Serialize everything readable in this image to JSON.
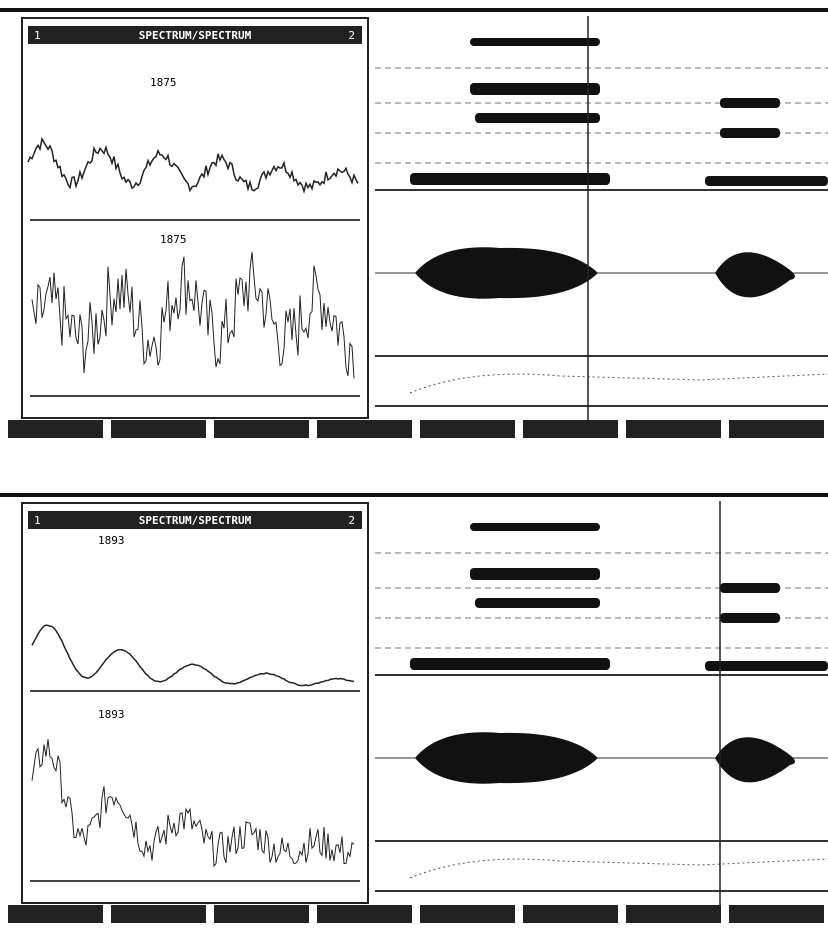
{
  "panels": [
    {
      "title": "SPECTRUM/SPECTRUM",
      "window_left": "1",
      "window_right": "2",
      "upper_label": "1875",
      "lower_label": "1875"
    },
    {
      "title": "SPECTRUM/SPECTRUM",
      "window_left": "1",
      "window_right": "2",
      "upper_label": "1893",
      "lower_label": "1893"
    }
  ]
}
